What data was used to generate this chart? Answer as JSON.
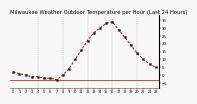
{
  "title": "Milwaukee Weather Outdoor Temperature per Hour (Last 24 Hours)",
  "hours": [
    0,
    1,
    2,
    3,
    4,
    5,
    6,
    7,
    8,
    9,
    10,
    11,
    12,
    13,
    14,
    15,
    16,
    17,
    18,
    19,
    20,
    21,
    22,
    23
  ],
  "temps": [
    2,
    1,
    0,
    -1,
    -1,
    -2,
    -2,
    -3,
    0,
    4,
    10,
    16,
    22,
    27,
    30,
    33,
    34,
    29,
    24,
    19,
    14,
    10,
    7,
    5
  ],
  "line_color": "#cc0000",
  "marker_color": "#111111",
  "bg_color": "#f8f8f8",
  "grid_color": "#999999",
  "hline_y": -3,
  "hline_color": "#cc0000",
  "ylim": [
    -8,
    38
  ],
  "yticks": [
    35,
    30,
    25,
    20,
    15,
    10,
    5,
    0,
    -5
  ],
  "vgrid_positions": [
    4,
    8,
    12,
    16,
    20
  ],
  "title_fontsize": 3.8,
  "tick_fontsize": 2.8,
  "line_width": 0.7,
  "marker_size": 1.4
}
